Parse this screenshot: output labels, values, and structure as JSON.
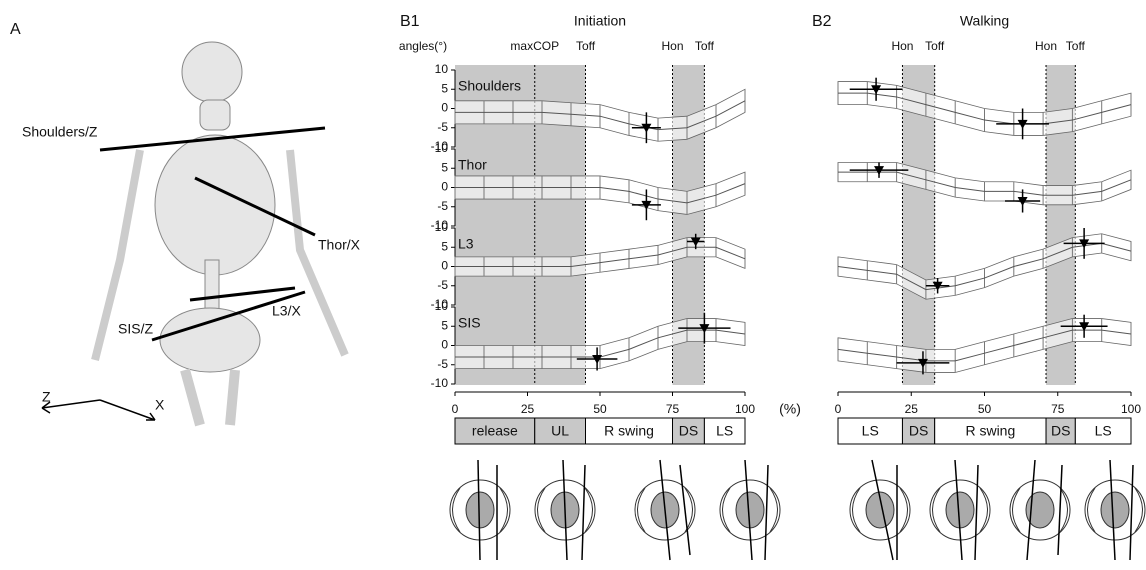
{
  "panel_a": {
    "label": "A",
    "segments": [
      "Shoulders/Z",
      "Thor/X",
      "L3/X",
      "SIS/Z"
    ],
    "axes": [
      "Z",
      "X"
    ]
  },
  "chart_data": [
    {
      "type": "line",
      "label": "B1",
      "title": "Initiation",
      "ylabel": "angles(°)",
      "x_unit": "(%)",
      "xlim": [
        0,
        100
      ],
      "xticks": [
        0,
        25,
        50,
        75,
        100
      ],
      "ylim": [
        -10,
        10
      ],
      "yticks": [
        -10,
        -5,
        0,
        5,
        10
      ],
      "events": [
        {
          "label": "maxCOP",
          "x": 27.5
        },
        {
          "label": "Toff",
          "x": 45
        },
        {
          "label": "Hon",
          "x": 75
        },
        {
          "label": "Toff",
          "x": 86
        }
      ],
      "shaded": [
        [
          0,
          45
        ],
        [
          75,
          86
        ]
      ],
      "phases": [
        {
          "label": "release",
          "start": 0,
          "end": 27.5,
          "shaded": true
        },
        {
          "label": "UL",
          "start": 27.5,
          "end": 45,
          "shaded": true
        },
        {
          "label": "R swing",
          "start": 45,
          "end": 75,
          "shaded": false
        },
        {
          "label": "DS",
          "start": 75,
          "end": 86,
          "shaded": true
        },
        {
          "label": "LS",
          "start": 86,
          "end": 100,
          "shaded": false
        }
      ],
      "subplots": [
        {
          "name": "Shoulders",
          "x": [
            0,
            10,
            20,
            30,
            40,
            50,
            60,
            70,
            80,
            90,
            100
          ],
          "values": [
            -1,
            -1,
            -1,
            -1,
            -1.5,
            -2,
            -4,
            -5.5,
            -5,
            -2,
            2
          ],
          "errors": [
            3,
            3,
            3,
            3,
            3,
            3,
            3,
            3,
            3,
            3,
            3
          ],
          "markers": [
            {
              "x": 66,
              "y": -5,
              "xerr": 5,
              "yerr": 4
            }
          ]
        },
        {
          "name": "Thor",
          "x": [
            0,
            10,
            20,
            30,
            40,
            50,
            60,
            70,
            80,
            90,
            100
          ],
          "values": [
            0,
            0,
            0,
            0,
            0,
            0,
            -1,
            -3,
            -4,
            -2,
            1
          ],
          "errors": [
            3,
            3,
            3,
            3,
            3,
            3,
            3,
            3,
            3,
            3,
            3
          ],
          "markers": [
            {
              "x": 66,
              "y": -4.5,
              "xerr": 5,
              "yerr": 4
            }
          ]
        },
        {
          "name": "L3",
          "x": [
            0,
            10,
            20,
            30,
            40,
            50,
            60,
            70,
            80,
            90,
            100
          ],
          "values": [
            0,
            0,
            0,
            0,
            0,
            1,
            2,
            3,
            5,
            5,
            2
          ],
          "errors": [
            2.5,
            2.5,
            2.5,
            2.5,
            2.5,
            2.5,
            2.5,
            2.5,
            2.5,
            2.5,
            2.5
          ],
          "markers": [
            {
              "x": 83,
              "y": 6.5,
              "xerr": 3,
              "yerr": 2
            }
          ]
        },
        {
          "name": "SIS",
          "x": [
            0,
            10,
            20,
            30,
            40,
            50,
            60,
            70,
            80,
            90,
            100
          ],
          "values": [
            -3,
            -3,
            -3,
            -3,
            -3,
            -3,
            -1,
            2,
            4,
            4,
            3
          ],
          "errors": [
            3,
            3,
            3,
            3,
            3,
            3,
            3,
            3,
            3,
            3,
            3
          ],
          "markers": [
            {
              "x": 49,
              "y": -3.5,
              "xerr": 7,
              "yerr": 3
            },
            {
              "x": 86,
              "y": 4.5,
              "xerr": 9,
              "yerr": 4
            }
          ]
        }
      ]
    },
    {
      "type": "line",
      "label": "B2",
      "title": "Walking",
      "xlim": [
        0,
        100
      ],
      "xticks": [
        0,
        25,
        50,
        75,
        100
      ],
      "ylim": [
        -10,
        10
      ],
      "events": [
        {
          "label": "Hon",
          "x": 22
        },
        {
          "label": "Toff",
          "x": 33
        },
        {
          "label": "Hon",
          "x": 71
        },
        {
          "label": "Toff",
          "x": 81
        }
      ],
      "shaded": [
        [
          22,
          33
        ],
        [
          71,
          81
        ]
      ],
      "phases": [
        {
          "label": "LS",
          "start": 0,
          "end": 22,
          "shaded": false
        },
        {
          "label": "DS",
          "start": 22,
          "end": 33,
          "shaded": true
        },
        {
          "label": "R swing",
          "start": 33,
          "end": 71,
          "shaded": false
        },
        {
          "label": "DS",
          "start": 71,
          "end": 81,
          "shaded": true
        },
        {
          "label": "LS",
          "start": 81,
          "end": 100,
          "shaded": false
        }
      ],
      "subplots": [
        {
          "x": [
            0,
            10,
            20,
            30,
            40,
            50,
            60,
            70,
            80,
            90,
            100
          ],
          "values": [
            4,
            4,
            3,
            1,
            -1,
            -3,
            -4,
            -4,
            -3,
            -1,
            1
          ],
          "errors": [
            3,
            3,
            3,
            3,
            3,
            3,
            3,
            3,
            3,
            3,
            3
          ],
          "markers": [
            {
              "x": 13,
              "y": 5,
              "xerr": 9,
              "yerr": 3
            },
            {
              "x": 63,
              "y": -4,
              "xerr": 9,
              "yerr": 4
            }
          ]
        },
        {
          "x": [
            0,
            10,
            20,
            30,
            40,
            50,
            60,
            70,
            80,
            90,
            100
          ],
          "values": [
            4,
            4,
            4,
            2,
            0,
            -1,
            -1,
            -2,
            -2,
            -1,
            2
          ],
          "errors": [
            2.5,
            2.5,
            2.5,
            2.5,
            2.5,
            2.5,
            2.5,
            2.5,
            2.5,
            2.5,
            2.5
          ],
          "markers": [
            {
              "x": 14,
              "y": 4.5,
              "xerr": 10,
              "yerr": 2
            },
            {
              "x": 63,
              "y": -3.5,
              "xerr": 6,
              "yerr": 3
            }
          ]
        },
        {
          "x": [
            0,
            10,
            20,
            30,
            40,
            50,
            60,
            70,
            80,
            90,
            100
          ],
          "values": [
            0,
            -1,
            -2,
            -6,
            -5,
            -3,
            0,
            2,
            5,
            6,
            4
          ],
          "errors": [
            2.5,
            2.5,
            2.5,
            2.5,
            2.5,
            2.5,
            2.5,
            2.5,
            2.5,
            2.5,
            2.5
          ],
          "markers": [
            {
              "x": 34,
              "y": -5,
              "xerr": 4,
              "yerr": 2
            },
            {
              "x": 84,
              "y": 6,
              "xerr": 7,
              "yerr": 4
            }
          ]
        },
        {
          "x": [
            0,
            10,
            20,
            30,
            40,
            50,
            60,
            70,
            80,
            90,
            100
          ],
          "values": [
            -1,
            -2,
            -3,
            -4,
            -4,
            -2,
            0,
            2,
            4,
            4,
            3
          ],
          "errors": [
            3,
            3,
            3,
            3,
            3,
            3,
            3,
            3,
            3,
            3,
            3
          ],
          "markers": [
            {
              "x": 29,
              "y": -4.5,
              "xerr": 9,
              "yerr": 3
            },
            {
              "x": 84,
              "y": 5,
              "xerr": 8,
              "yerr": 3
            }
          ]
        }
      ]
    }
  ]
}
